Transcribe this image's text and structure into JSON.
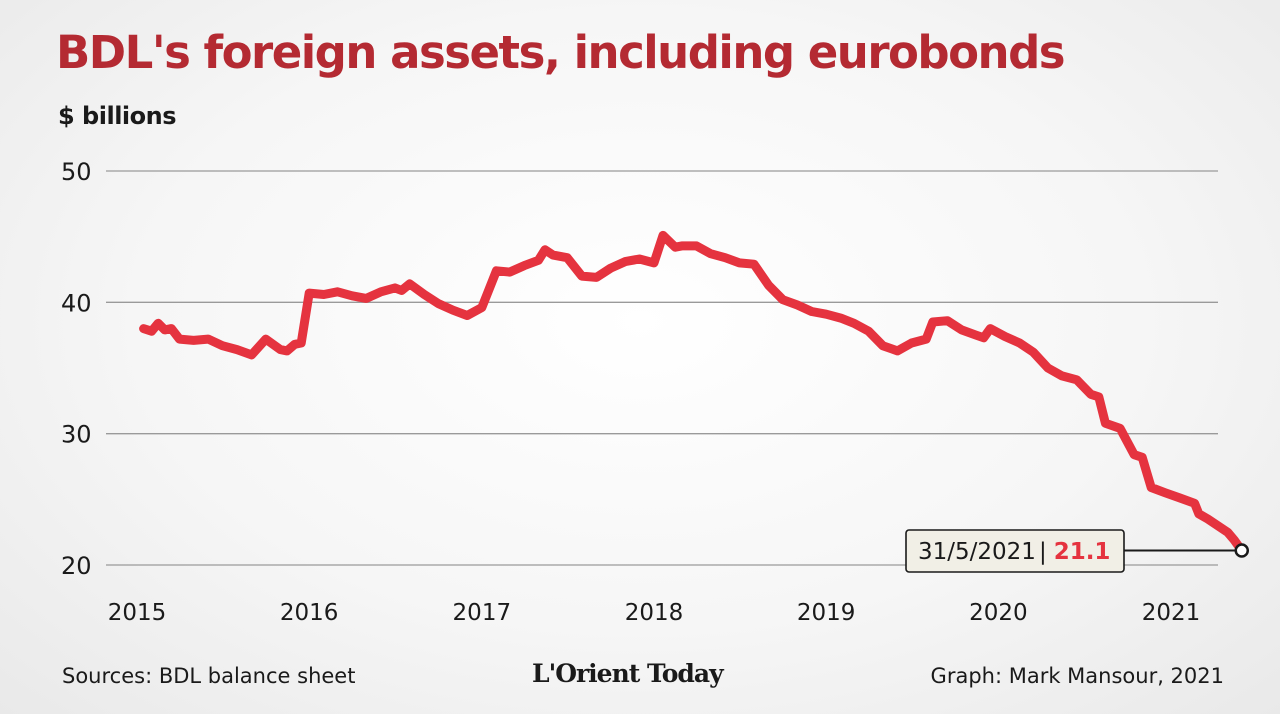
{
  "title": "BDL's foreign assets, including eurobonds",
  "unit_label": "$ billions",
  "footer": {
    "source": "Sources: BDL balance sheet",
    "logo": "L'Orient Today",
    "credit": "Graph: Mark Mansour, 2021"
  },
  "colors": {
    "title": "#b42a32",
    "line": "#e5333f",
    "grid": "#9a9a9a",
    "callout_value": "#e5333f"
  },
  "chart_data": {
    "type": "line",
    "title": "BDL's foreign assets, including eurobonds",
    "ylabel": "$ billions",
    "xlabel": "",
    "ylim": [
      20,
      50
    ],
    "xlim": [
      "2015-01-01",
      "2021-06-15"
    ],
    "grid": true,
    "y_ticks": [
      50,
      40,
      30,
      20
    ],
    "x_ticks": [
      {
        "label": "2015",
        "date": "2015-01-01"
      },
      {
        "label": "2016",
        "date": "2016-01-01"
      },
      {
        "label": "2017",
        "date": "2017-01-01"
      },
      {
        "label": "2018",
        "date": "2018-01-01"
      },
      {
        "label": "2019",
        "date": "2019-01-01"
      },
      {
        "label": "2020",
        "date": "2020-01-01"
      },
      {
        "label": "2021",
        "date": "2021-01-01"
      }
    ],
    "series": [
      {
        "points": [
          [
            "2015-01-15",
            38.0
          ],
          [
            "2015-02-01",
            37.8
          ],
          [
            "2015-02-15",
            38.4
          ],
          [
            "2015-03-01",
            37.9
          ],
          [
            "2015-03-15",
            38.0
          ],
          [
            "2015-04-01",
            37.2
          ],
          [
            "2015-05-01",
            37.1
          ],
          [
            "2015-06-01",
            37.2
          ],
          [
            "2015-07-01",
            36.7
          ],
          [
            "2015-08-01",
            36.4
          ],
          [
            "2015-09-01",
            36.0
          ],
          [
            "2015-10-01",
            37.2
          ],
          [
            "2015-11-01",
            36.4
          ],
          [
            "2015-11-15",
            36.3
          ],
          [
            "2015-12-01",
            36.8
          ],
          [
            "2015-12-15",
            36.9
          ],
          [
            "2016-01-01",
            40.7
          ],
          [
            "2016-02-01",
            40.6
          ],
          [
            "2016-03-01",
            40.8
          ],
          [
            "2016-04-01",
            40.5
          ],
          [
            "2016-05-01",
            40.3
          ],
          [
            "2016-06-01",
            40.8
          ],
          [
            "2016-07-01",
            41.1
          ],
          [
            "2016-07-15",
            40.9
          ],
          [
            "2016-08-01",
            41.4
          ],
          [
            "2016-09-01",
            40.6
          ],
          [
            "2016-10-01",
            39.9
          ],
          [
            "2016-11-01",
            39.4
          ],
          [
            "2016-12-01",
            39.0
          ],
          [
            "2017-01-01",
            39.6
          ],
          [
            "2017-02-01",
            42.4
          ],
          [
            "2017-03-01",
            42.3
          ],
          [
            "2017-04-01",
            42.8
          ],
          [
            "2017-05-01",
            43.2
          ],
          [
            "2017-05-15",
            44.0
          ],
          [
            "2017-06-01",
            43.6
          ],
          [
            "2017-07-01",
            43.4
          ],
          [
            "2017-08-01",
            42.0
          ],
          [
            "2017-09-01",
            41.9
          ],
          [
            "2017-10-01",
            42.6
          ],
          [
            "2017-11-01",
            43.1
          ],
          [
            "2017-12-01",
            43.3
          ],
          [
            "2018-01-01",
            43.0
          ],
          [
            "2018-01-20",
            45.1
          ],
          [
            "2018-02-15",
            44.2
          ],
          [
            "2018-03-01",
            44.3
          ],
          [
            "2018-04-01",
            44.3
          ],
          [
            "2018-05-01",
            43.7
          ],
          [
            "2018-06-01",
            43.4
          ],
          [
            "2018-07-01",
            43.0
          ],
          [
            "2018-08-01",
            42.9
          ],
          [
            "2018-09-01",
            41.3
          ],
          [
            "2018-10-01",
            40.2
          ],
          [
            "2018-11-01",
            39.8
          ],
          [
            "2018-12-01",
            39.3
          ],
          [
            "2019-01-01",
            39.1
          ],
          [
            "2019-02-01",
            38.8
          ],
          [
            "2019-03-01",
            38.4
          ],
          [
            "2019-04-01",
            37.8
          ],
          [
            "2019-05-01",
            36.7
          ],
          [
            "2019-06-01",
            36.3
          ],
          [
            "2019-07-01",
            36.9
          ],
          [
            "2019-08-01",
            37.2
          ],
          [
            "2019-08-15",
            38.5
          ],
          [
            "2019-09-15",
            38.6
          ],
          [
            "2019-10-15",
            37.9
          ],
          [
            "2019-11-15",
            37.5
          ],
          [
            "2019-12-01",
            37.3
          ],
          [
            "2019-12-15",
            38.0
          ],
          [
            "2020-01-15",
            37.4
          ],
          [
            "2020-02-15",
            36.9
          ],
          [
            "2020-03-15",
            36.2
          ],
          [
            "2020-04-15",
            35.0
          ],
          [
            "2020-05-15",
            34.4
          ],
          [
            "2020-06-15",
            34.1
          ],
          [
            "2020-07-15",
            33.0
          ],
          [
            "2020-08-01",
            32.8
          ],
          [
            "2020-08-15",
            30.8
          ],
          [
            "2020-09-15",
            30.4
          ],
          [
            "2020-10-15",
            28.4
          ],
          [
            "2020-11-01",
            28.2
          ],
          [
            "2020-11-20",
            25.9
          ],
          [
            "2020-12-20",
            25.5
          ],
          [
            "2021-01-20",
            25.1
          ],
          [
            "2021-02-20",
            24.7
          ],
          [
            "2021-03-01",
            23.9
          ],
          [
            "2021-03-20",
            23.5
          ],
          [
            "2021-04-10",
            23.0
          ],
          [
            "2021-05-01",
            22.5
          ],
          [
            "2021-05-15",
            21.9
          ],
          [
            "2021-05-31",
            21.1
          ]
        ]
      }
    ],
    "annotation": {
      "date_text": "31/5/2021",
      "separator": "|",
      "value_text": "21.1",
      "point": [
        "2021-05-31",
        21.1
      ]
    }
  }
}
